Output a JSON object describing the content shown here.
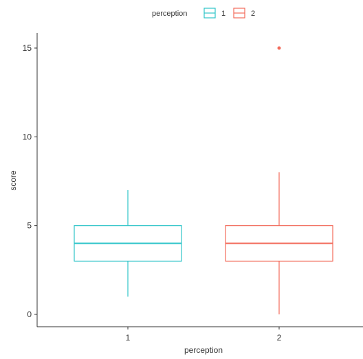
{
  "chart_data": {
    "type": "boxplot",
    "title": "",
    "xlabel": "perception",
    "ylabel": "score",
    "ylim": [
      0,
      15
    ],
    "y_ticks": [
      0,
      5,
      10,
      15
    ],
    "categories": [
      "1",
      "2"
    ],
    "grid": false,
    "legend": {
      "title": "perception",
      "placement": "top",
      "entries": [
        "1",
        "2"
      ]
    },
    "colors": {
      "1": "#2EC4C9",
      "2": "#F26B5B"
    },
    "series": [
      {
        "category": "1",
        "whisker_low": 1,
        "q1": 3,
        "median": 4,
        "q3": 5,
        "whisker_high": 7,
        "outliers": []
      },
      {
        "category": "2",
        "whisker_low": 0,
        "q1": 3,
        "median": 4,
        "q3": 5,
        "whisker_high": 8,
        "outliers": [
          15
        ]
      }
    ]
  }
}
